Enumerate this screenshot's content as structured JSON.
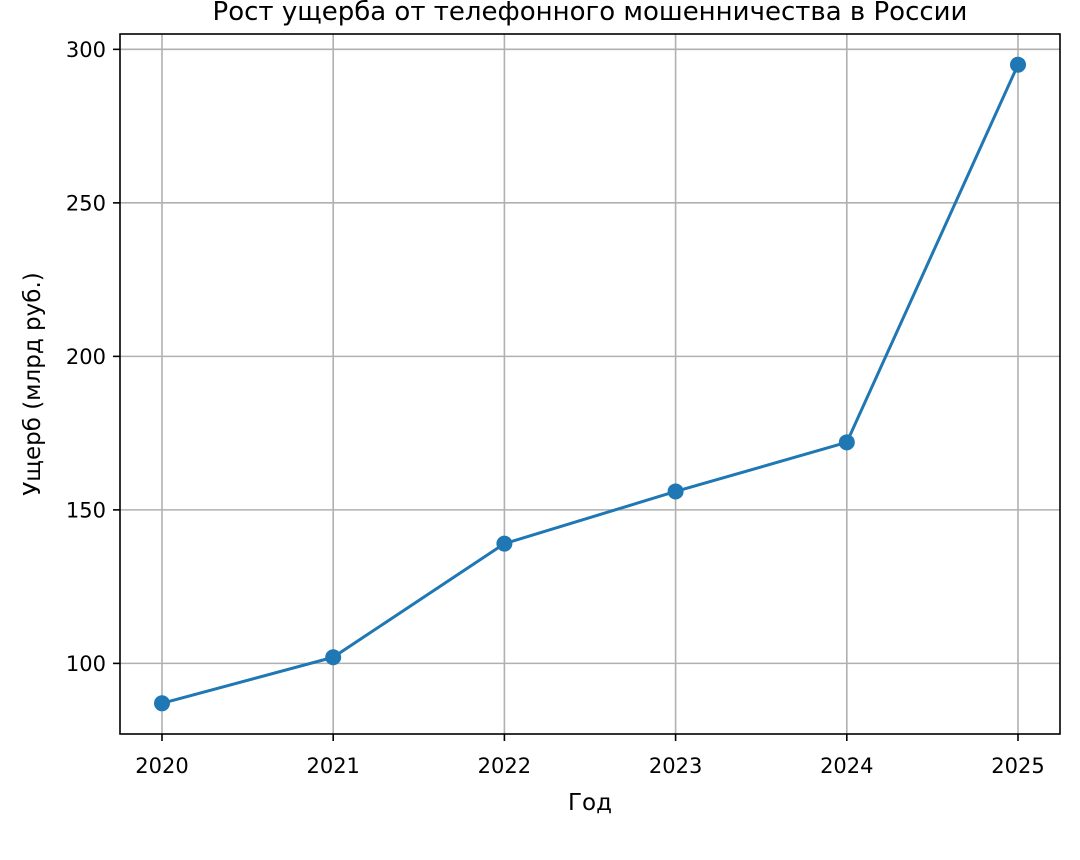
{
  "chart_data": {
    "type": "line",
    "title": "Рост ущерба от телефонного мошенничества в России",
    "xlabel": "Год",
    "ylabel": "Ущерб (млрд руб.)",
    "categories": [
      "2020",
      "2021",
      "2022",
      "2023",
      "2024",
      "2025"
    ],
    "series": [
      {
        "values": [
          87,
          102,
          139,
          156,
          172,
          295
        ],
        "color": "#1f77b4",
        "marker": "circle"
      }
    ],
    "ylim": [
      77,
      305
    ],
    "yticks": [
      100,
      150,
      200,
      250,
      300
    ],
    "grid": true
  }
}
